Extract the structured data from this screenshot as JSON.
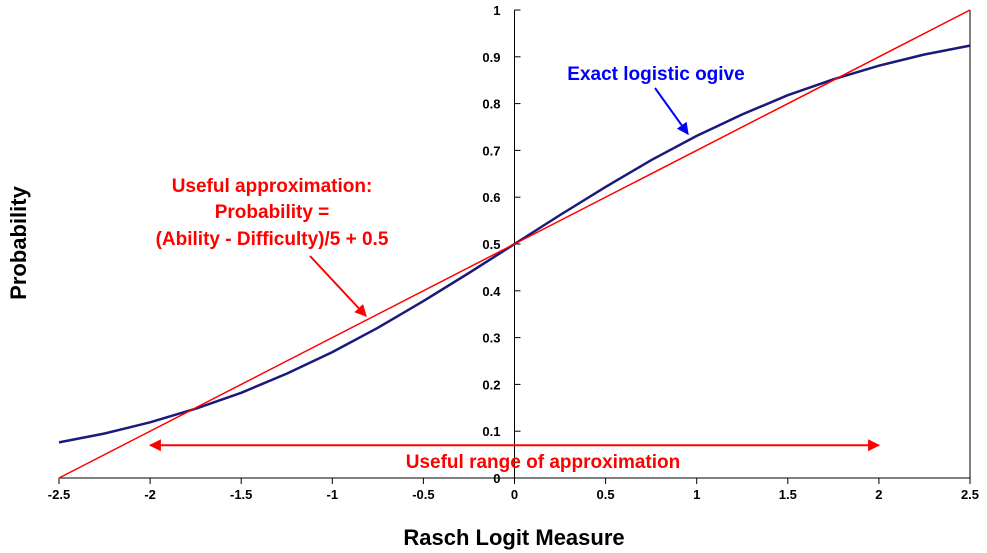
{
  "chart_data": {
    "type": "line",
    "xlabel": "Rasch Logit Measure",
    "ylabel": "Probability",
    "xlim": [
      -2.5,
      2.5
    ],
    "ylim": [
      0,
      1
    ],
    "x_ticks": [
      "-2.5",
      "-2",
      "-1.5",
      "-1",
      "-0.5",
      "0",
      "0.5",
      "1",
      "1.5",
      "2",
      "2.5"
    ],
    "y_ticks": [
      "0",
      "0.1",
      "0.2",
      "0.3",
      "0.4",
      "0.5",
      "0.6",
      "0.7",
      "0.8",
      "0.9",
      "1"
    ],
    "grid": false,
    "series": [
      {
        "id": "ogive",
        "color": "#1a1a7a",
        "x": [
          -2.5,
          -2.25,
          -2.0,
          -1.75,
          -1.5,
          -1.25,
          -1.0,
          -0.75,
          -0.5,
          -0.25,
          0,
          0.25,
          0.5,
          0.75,
          1.0,
          1.25,
          1.5,
          1.75,
          2.0,
          2.25,
          2.5
        ],
        "values": [
          0.076,
          0.095,
          0.119,
          0.148,
          0.182,
          0.223,
          0.269,
          0.321,
          0.378,
          0.438,
          0.5,
          0.562,
          0.622,
          0.679,
          0.731,
          0.777,
          0.818,
          0.852,
          0.881,
          0.905,
          0.924
        ]
      },
      {
        "id": "approximation",
        "color": "#ff0000",
        "x": [
          -2.5,
          2.5
        ],
        "values": [
          0.0,
          1.0
        ]
      }
    ],
    "annotations": {
      "ogive_label": "Exact logistic ogive",
      "approx_line1": "Useful approximation:",
      "approx_line2": "Probability =",
      "approx_line3": "(Ability - Difficulty)/5 + 0.5",
      "range_label": "Useful range of approximation"
    },
    "range_arrow": {
      "from": -2.0,
      "to": 2.0,
      "y": 0.07
    },
    "colors": {
      "annotation_red": "#ff0000",
      "annotation_blue": "#0000ff",
      "axis": "#000000"
    }
  }
}
